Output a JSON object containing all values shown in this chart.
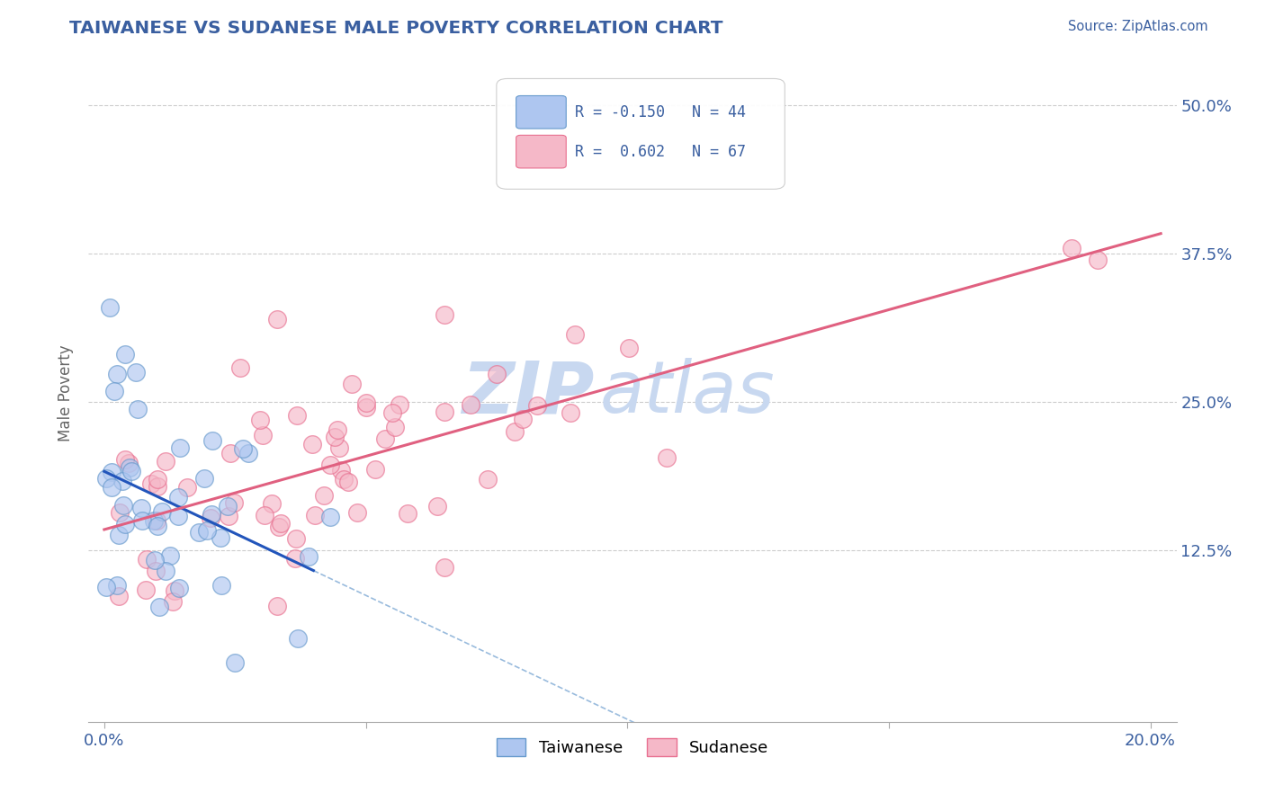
{
  "title": "TAIWANESE VS SUDANESE MALE POVERTY CORRELATION CHART",
  "title_color": "#3a5fa0",
  "source_text": "Source: ZipAtlas.com",
  "source_color": "#3a5fa0",
  "ylabel": "Male Poverty",
  "xlim": [
    -0.003,
    0.205
  ],
  "ylim": [
    -0.02,
    0.535
  ],
  "ytick_labels": [
    "12.5%",
    "25.0%",
    "37.5%",
    "50.0%"
  ],
  "ytick_values": [
    0.125,
    0.25,
    0.375,
    0.5
  ],
  "grid_color": "#cccccc",
  "watermark_zip": "ZIP",
  "watermark_atlas": "atlas",
  "watermark_color": "#c8d8f0",
  "taiwanese_color": "#aec6f0",
  "taiwanese_edge": "#6699cc",
  "sudanese_color": "#f5b8c8",
  "sudanese_edge": "#e87090",
  "taiwanese_R": -0.15,
  "taiwanese_N": 44,
  "sudanese_R": 0.602,
  "sudanese_N": 67,
  "legend_label_1": "Taiwanese",
  "legend_label_2": "Sudanese",
  "background_color": "#ffffff",
  "plot_bg_color": "#ffffff",
  "tw_line_color": "#2255bb",
  "su_line_color": "#e06080",
  "dash_color": "#99bbdd"
}
